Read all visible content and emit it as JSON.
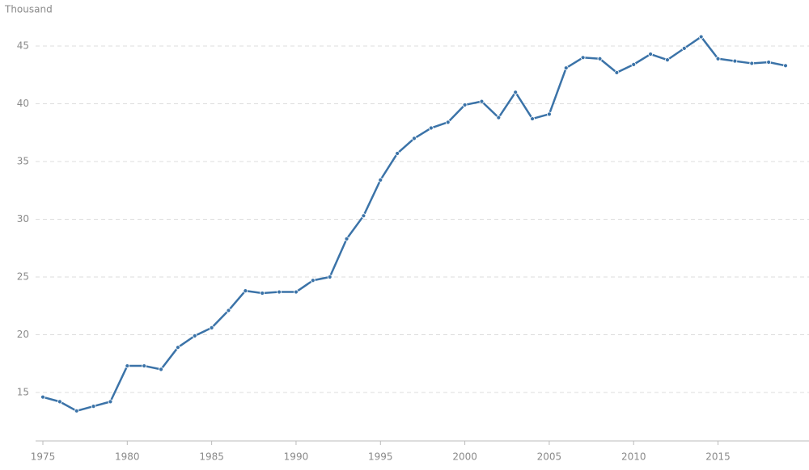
{
  "chart_data": {
    "type": "line",
    "y_label": "Thousand",
    "x": [
      1975,
      1976,
      1977,
      1978,
      1979,
      1980,
      1981,
      1982,
      1983,
      1984,
      1985,
      1986,
      1987,
      1988,
      1989,
      1990,
      1991,
      1992,
      1993,
      1994,
      1995,
      1996,
      1997,
      1998,
      1999,
      2000,
      2001,
      2002,
      2003,
      2004,
      2005,
      2006,
      2007,
      2008,
      2009,
      2010,
      2011,
      2012,
      2013,
      2014,
      2015,
      2016,
      2017,
      2018,
      2019
    ],
    "values": [
      14.6,
      14.2,
      13.4,
      13.8,
      14.2,
      17.3,
      17.3,
      17.0,
      18.9,
      19.9,
      20.6,
      22.1,
      23.8,
      23.6,
      23.7,
      23.7,
      24.7,
      25.0,
      28.3,
      30.3,
      33.4,
      35.7,
      37.0,
      37.9,
      38.4,
      39.9,
      40.2,
      38.8,
      41.0,
      38.7,
      39.1,
      43.1,
      44.0,
      43.9,
      42.7,
      43.4,
      44.3,
      43.8,
      44.8,
      45.8,
      43.9,
      43.7,
      43.5,
      43.6,
      43.3
    ],
    "color": "#3b73a8",
    "xlim": [
      1975,
      2019
    ],
    "xticks": [
      1975,
      1980,
      1985,
      1990,
      1995,
      2000,
      2005,
      2010,
      2015
    ],
    "ylim": [
      10.8,
      47
    ],
    "yticks": [
      15,
      20,
      25,
      30,
      35,
      40,
      45
    ],
    "grid": true
  }
}
